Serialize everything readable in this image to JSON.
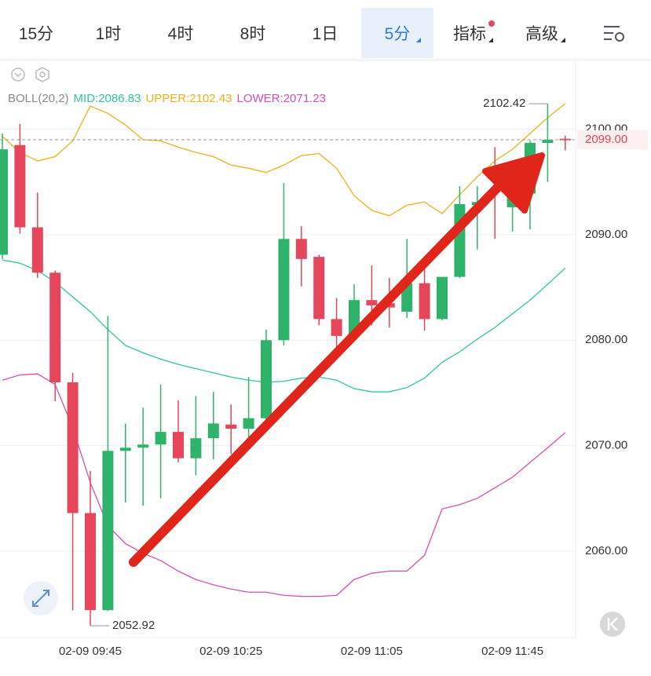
{
  "tabs": [
    "15分",
    "1时",
    "4时",
    "8时",
    "1日",
    "5分",
    "指标",
    "高级"
  ],
  "active_tab": "5分",
  "chart_data": {
    "type": "candlestick",
    "indicator": "BOLL(20,2)",
    "x": [
      null,
      null,
      null,
      null,
      null,
      "02-09 09:45",
      null,
      null,
      null,
      null,
      null,
      null,
      null,
      "02-09 10:25",
      null,
      null,
      null,
      null,
      null,
      null,
      null,
      "02-09 11:05",
      null,
      null,
      null,
      null,
      null,
      null,
      null,
      "02-09 11:45",
      null,
      null,
      null
    ],
    "candles": {
      "up_color": "#2fb36a",
      "down_color": "#e5465a",
      "open": [
        2088.1,
        2098.5,
        2090.7,
        2086.4,
        2076.0,
        2063.6,
        2054.4,
        2069.5,
        2069.8,
        2070.1,
        2071.3,
        2068.8,
        2070.7,
        2072.0,
        2071.6,
        2072.6,
        2080.0,
        2089.6,
        2087.9,
        2082.0,
        2080.4,
        2083.8,
        2083.5,
        2082.7,
        2085.4,
        2082.0,
        2086.0,
        2092.8,
        2095.8,
        2092.6,
        2093.9,
        2098.7,
        2099.1
      ],
      "high": [
        2099.6,
        2100.5,
        2094.0,
        2086.6,
        2076.9,
        2067.6,
        2082.3,
        2072.1,
        2073.6,
        2075.8,
        2074.3,
        2074.7,
        2075.1,
        2073.9,
        2076.5,
        2081.0,
        2094.9,
        2090.8,
        2088.1,
        2084.0,
        2085.3,
        2087.1,
        2085.9,
        2089.6,
        2087.3,
        2086.0,
        2094.6,
        2094.6,
        2098.3,
        2095.5,
        2098.9,
        2102.42,
        2099.4
      ],
      "low": [
        2087.7,
        2090.1,
        2085.9,
        2074.2,
        2054.4,
        2052.92,
        2054.3,
        2064.6,
        2064.3,
        2065.0,
        2068.4,
        2067.2,
        2068.7,
        2069.2,
        2070.0,
        2072.4,
        2079.5,
        2085.1,
        2081.4,
        2079.1,
        2080.0,
        2081.4,
        2081.2,
        2082.1,
        2080.9,
        2081.9,
        2085.9,
        2088.6,
        2089.6,
        2090.3,
        2090.5,
        2095.0,
        2098.0
      ],
      "close": [
        2098.1,
        2090.7,
        2086.4,
        2076.0,
        2063.6,
        2054.4,
        2069.5,
        2069.8,
        2070.1,
        2071.3,
        2068.8,
        2070.7,
        2072.1,
        2071.6,
        2072.6,
        2080.0,
        2089.6,
        2087.7,
        2082.0,
        2080.4,
        2083.8,
        2083.3,
        2083.1,
        2085.4,
        2082.0,
        2086.0,
        2092.9,
        2093.1,
        2095.2,
        2094.4,
        2098.7,
        2099.0,
        2099.0
      ]
    },
    "series": [
      {
        "name": "MID:2086.83",
        "color": "#2ec4a6",
        "values": [
          2087.6,
          2087.3,
          2086.6,
          2085.5,
          2084.1,
          2082.7,
          2081.0,
          2079.5,
          2078.8,
          2078.2,
          2077.7,
          2077.3,
          2076.9,
          2076.5,
          2076.2,
          2076.0,
          2076.1,
          2076.4,
          2076.5,
          2076.2,
          2075.4,
          2075.1,
          2075.1,
          2075.5,
          2076.4,
          2077.9,
          2078.9,
          2080.1,
          2081.2,
          2082.5,
          2083.8,
          2085.3,
          2086.83
        ]
      },
      {
        "name": "UPPER:2102.43",
        "color": "#e8b31a",
        "values": [
          2099.3,
          2097.8,
          2097.0,
          2097.4,
          2098.9,
          2102.2,
          2101.5,
          2100.4,
          2099.0,
          2098.9,
          2098.3,
          2097.8,
          2097.4,
          2096.6,
          2096.3,
          2095.9,
          2096.6,
          2097.5,
          2097.7,
          2096.3,
          2093.7,
          2092.3,
          2091.8,
          2092.8,
          2093.1,
          2092.0,
          2093.8,
          2095.5,
          2097.0,
          2098.1,
          2099.6,
          2101.1,
          2102.43
        ]
      },
      {
        "name": "LOWER:2071.23",
        "color": "#d64fb3",
        "values": [
          2076.2,
          2076.7,
          2076.8,
          2075.8,
          2071.7,
          2066.5,
          2062.4,
          2060.7,
          2059.8,
          2059.1,
          2058.1,
          2057.3,
          2056.8,
          2056.4,
          2056.1,
          2056.1,
          2055.8,
          2055.7,
          2055.7,
          2055.8,
          2057.3,
          2057.9,
          2058.1,
          2058.1,
          2059.6,
          2064.0,
          2064.4,
          2065.0,
          2066.0,
          2067.0,
          2068.4,
          2069.8,
          2071.23
        ]
      }
    ],
    "ylim": [
      2051.8,
      2106.3
    ],
    "yticks": [
      {
        "value": 2060,
        "label": "2060.00"
      },
      {
        "value": 2070,
        "label": "2070.00"
      },
      {
        "value": 2080,
        "label": "2080.00"
      },
      {
        "value": 2090,
        "label": "2090.00"
      },
      {
        "value": 2100,
        "label": "2100.00"
      }
    ],
    "grid": true,
    "high_label": "2102.42",
    "low_label": "2052.92",
    "last_price_label": "2099.00",
    "last_price_color": "#e5465a"
  }
}
